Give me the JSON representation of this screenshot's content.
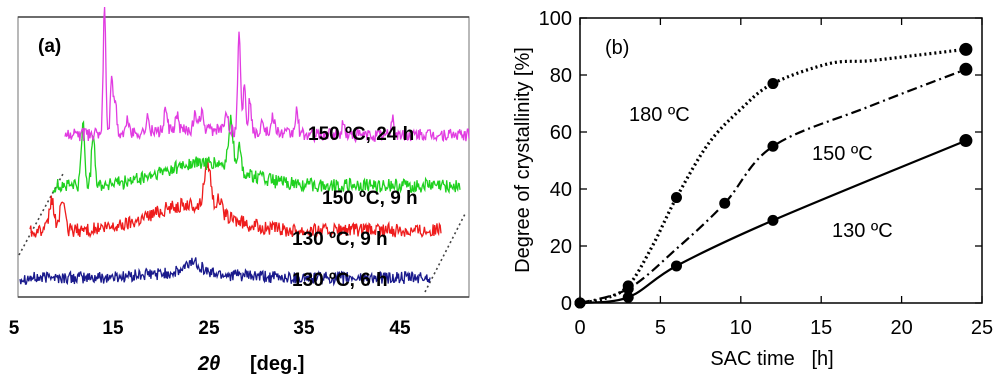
{
  "chart_data": [
    {
      "type": "line",
      "panel_label": "(a)",
      "xlabel_symbol": "2θ",
      "xlabel_unit": "[deg.]",
      "xticks": [
        "5",
        "15",
        "25",
        "35",
        "45"
      ],
      "xlim": [
        5,
        55
      ],
      "series": [
        {
          "name": "130 ºC, 6 h",
          "color": "#1a1a8c",
          "baseline": 0.05,
          "noise": 0.045,
          "peaks": [
            {
              "x": 9.2,
              "h": 0.015,
              "w": 0.3
            },
            {
              "x": 24.0,
              "h": 0.04,
              "w": 1.0
            }
          ],
          "halo": {
            "center": 23.5,
            "height": 0.02,
            "width": 6.0
          }
        },
        {
          "name": "130 ºC, 9 h",
          "color": "#ee1c1c",
          "baseline": 0.22,
          "noise": 0.05,
          "peaks": [
            {
              "x": 8.8,
              "h": 0.11,
              "w": 0.35
            },
            {
              "x": 9.9,
              "h": 0.11,
              "w": 0.35
            },
            {
              "x": 25.3,
              "h": 0.17,
              "w": 0.5
            },
            {
              "x": 26.5,
              "h": 0.05,
              "w": 0.4
            }
          ],
          "halo": {
            "center": 23.0,
            "height": 0.09,
            "width": 5.5
          }
        },
        {
          "name": "150 ºC, 9 h",
          "color": "#1fd11f",
          "baseline": 0.38,
          "noise": 0.05,
          "peaks": [
            {
              "x": 11.2,
              "h": 0.22,
              "w": 0.25
            },
            {
              "x": 12.3,
              "h": 0.19,
              "w": 0.25
            },
            {
              "x": 27.0,
              "h": 0.17,
              "w": 0.35
            },
            {
              "x": 27.9,
              "h": 0.08,
              "w": 0.3
            }
          ],
          "halo": {
            "center": 24.0,
            "height": 0.08,
            "width": 6.0
          }
        },
        {
          "name": "150 ºC,  24 h",
          "color": "#e13ce1",
          "baseline": 0.56,
          "noise": 0.045,
          "peaks": [
            {
              "x": 13.4,
              "h": 0.46,
              "w": 0.2
            },
            {
              "x": 14.2,
              "h": 0.22,
              "w": 0.2
            },
            {
              "x": 14.6,
              "h": 0.12,
              "w": 0.2
            },
            {
              "x": 16.0,
              "h": 0.05,
              "w": 0.25
            },
            {
              "x": 18.2,
              "h": 0.05,
              "w": 0.25
            },
            {
              "x": 20.2,
              "h": 0.07,
              "w": 0.25
            },
            {
              "x": 21.5,
              "h": 0.05,
              "w": 0.25
            },
            {
              "x": 23.5,
              "h": 0.05,
              "w": 0.25
            },
            {
              "x": 24.2,
              "h": 0.06,
              "w": 0.25
            },
            {
              "x": 27.0,
              "h": 0.07,
              "w": 0.25
            },
            {
              "x": 28.4,
              "h": 0.36,
              "w": 0.22
            },
            {
              "x": 29.0,
              "h": 0.18,
              "w": 0.2
            },
            {
              "x": 29.6,
              "h": 0.12,
              "w": 0.2
            },
            {
              "x": 31.0,
              "h": 0.05,
              "w": 0.25
            },
            {
              "x": 32.2,
              "h": 0.06,
              "w": 0.25
            },
            {
              "x": 34.8,
              "h": 0.08,
              "w": 0.25
            },
            {
              "x": 40.0,
              "h": 0.04,
              "w": 0.25
            },
            {
              "x": 45.5,
              "h": 0.06,
              "w": 0.25
            }
          ],
          "halo": {
            "center": 24.0,
            "height": 0.02,
            "width": 8.0
          }
        }
      ]
    },
    {
      "type": "line",
      "panel_label": "(b)",
      "xlabel": "SAC time   [h]",
      "ylabel": "Degree of crystallinity [%]",
      "xlim": [
        0,
        25
      ],
      "ylim": [
        0,
        100
      ],
      "xticks": [
        0,
        5,
        10,
        15,
        20,
        25
      ],
      "yticks": [
        0,
        20,
        40,
        60,
        80,
        100
      ],
      "series": [
        {
          "name": "180 ºC",
          "style": "dotted",
          "markers": [
            {
              "x": 0,
              "y": 0
            },
            {
              "x": 3,
              "y": 6
            },
            {
              "x": 6,
              "y": 37
            },
            {
              "x": 12,
              "y": 77
            },
            {
              "x": 24,
              "y": 89
            }
          ],
          "curve": [
            {
              "x": 0,
              "y": 0
            },
            {
              "x": 1.5,
              "y": 1.5
            },
            {
              "x": 3,
              "y": 6
            },
            {
              "x": 4.5,
              "y": 20
            },
            {
              "x": 6,
              "y": 37
            },
            {
              "x": 8,
              "y": 56
            },
            {
              "x": 10,
              "y": 68
            },
            {
              "x": 12,
              "y": 77
            },
            {
              "x": 15.5,
              "y": 84
            },
            {
              "x": 18,
              "y": 85
            },
            {
              "x": 21,
              "y": 87
            },
            {
              "x": 24,
              "y": 89
            }
          ]
        },
        {
          "name": "150 ºC",
          "style": "dashdot",
          "markers": [
            {
              "x": 0,
              "y": 0
            },
            {
              "x": 3,
              "y": 5
            },
            {
              "x": 9,
              "y": 35
            },
            {
              "x": 12,
              "y": 55
            },
            {
              "x": 24,
              "y": 82
            }
          ],
          "curve": [
            {
              "x": 0,
              "y": 0
            },
            {
              "x": 3,
              "y": 5
            },
            {
              "x": 6,
              "y": 19
            },
            {
              "x": 9,
              "y": 35
            },
            {
              "x": 12,
              "y": 55
            },
            {
              "x": 18,
              "y": 69
            },
            {
              "x": 24,
              "y": 82
            }
          ]
        },
        {
          "name": "130 ºC",
          "style": "solid",
          "markers": [
            {
              "x": 0,
              "y": 0
            },
            {
              "x": 3,
              "y": 2
            },
            {
              "x": 6,
              "y": 13
            },
            {
              "x": 12,
              "y": 29
            },
            {
              "x": 24,
              "y": 57
            }
          ],
          "curve": [
            {
              "x": 0,
              "y": 0
            },
            {
              "x": 3,
              "y": 2
            },
            {
              "x": 6,
              "y": 13
            },
            {
              "x": 12,
              "y": 29
            },
            {
              "x": 24,
              "y": 57
            }
          ]
        }
      ]
    }
  ]
}
